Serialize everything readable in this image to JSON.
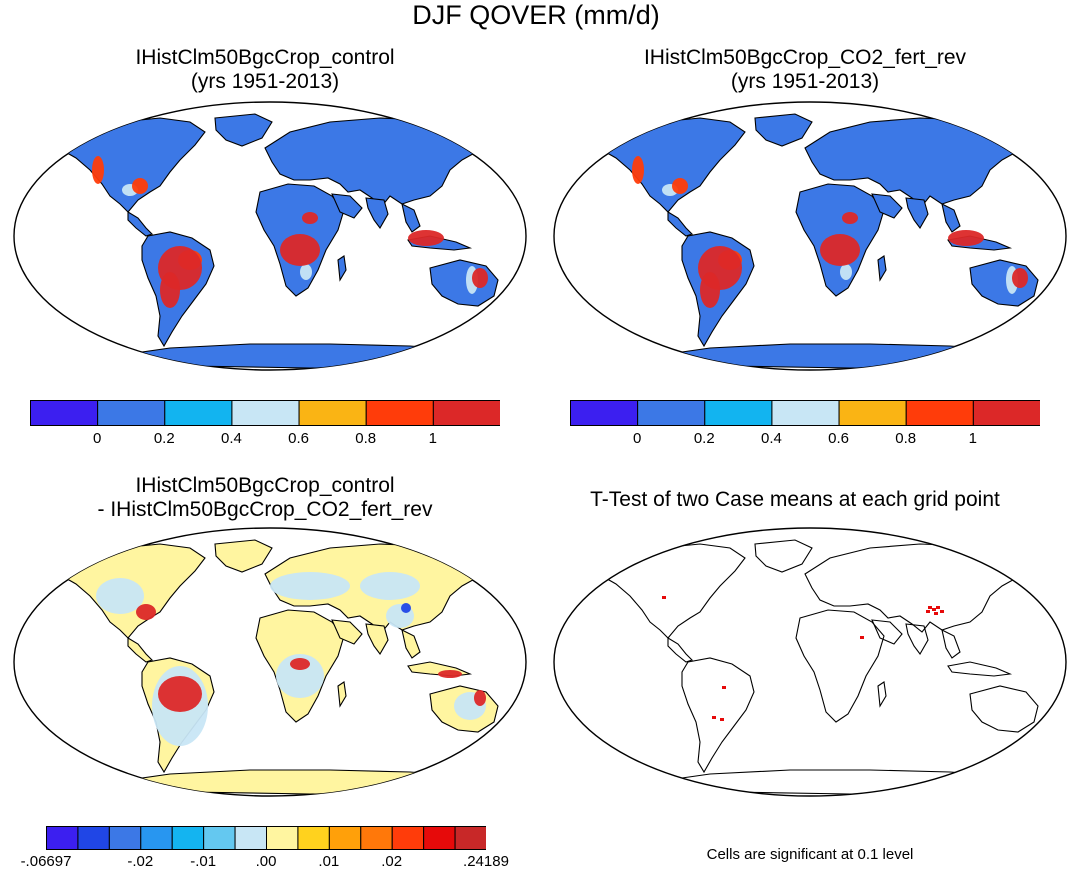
{
  "figure_title": "DJF QOVER (mm/d)",
  "panels": [
    {
      "title_line1": "IHistClm50BgcCrop_control",
      "title_line2": "(yrs 1951-2013)"
    },
    {
      "title_line1": "IHistClm50BgcCrop_CO2_fert_rev",
      "title_line2": "(yrs 1951-2013)"
    },
    {
      "title_line1": "IHistClm50BgcCrop_control",
      "title_line2": "- IHistClm50BgcCrop_CO2_fert_rev"
    },
    {
      "title_line1": "T-Test of two Case means at each grid point",
      "title_line2": ""
    }
  ],
  "colorbar_abs": {
    "colors": [
      "#3c1ff0",
      "#3c78e6",
      "#12b4f0",
      "#c8e6f5",
      "#fab414",
      "#ff3c0a",
      "#dc2828"
    ],
    "labels": [
      "0",
      "0.2",
      "0.4",
      "0.6",
      "0.8",
      "1"
    ]
  },
  "colorbar_diff": {
    "colors": [
      "#3c1ff0",
      "#2046e6",
      "#3c78e6",
      "#2896f0",
      "#14b4f0",
      "#64c8f0",
      "#c8e6f5",
      "#fff5a0",
      "#ffd21e",
      "#ffa00a",
      "#ff780a",
      "#ff3c0a",
      "#e60a0a",
      "#c82828"
    ],
    "labels": [
      "-.06697",
      "-.02",
      "-.01",
      ".00",
      ".01",
      ".02",
      ".24189"
    ]
  },
  "footnote": "Cells are significant at 0.1 level",
  "map_fill_colors": {
    "land_abs": "#3c78e6",
    "land_diff": "#fff5a0",
    "wet": "#dc2828",
    "moist": "#ff3c0a",
    "light": "#c8e6f5",
    "sig": "#e60a0a"
  }
}
